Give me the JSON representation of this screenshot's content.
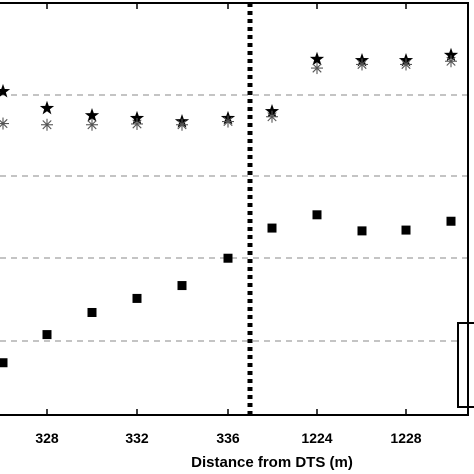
{
  "chart_data": {
    "type": "scatter",
    "xlabel": "Distance from DTS (m)",
    "x_tick_labels": [
      "328",
      "332",
      "336",
      "1224",
      "1228"
    ],
    "grid": "horizontal-dashed",
    "separator": "vertical dotted line between 336 and 1224",
    "legend": "box at bottom-right, contents cropped",
    "series": [
      {
        "marker": "star",
        "points": [
          {
            "x": 326,
            "rank": 0.805
          },
          {
            "x": 328,
            "rank": 0.763
          },
          {
            "x": 330,
            "rank": 0.745
          },
          {
            "x": 332,
            "rank": 0.738
          },
          {
            "x": 334,
            "rank": 0.73
          },
          {
            "x": 336,
            "rank": 0.738
          },
          {
            "x": 1222,
            "rank": 0.755
          },
          {
            "x": 1224,
            "rank": 0.885
          },
          {
            "x": 1226,
            "rank": 0.882
          },
          {
            "x": 1228,
            "rank": 0.882
          },
          {
            "x": 1230,
            "rank": 0.895
          }
        ]
      },
      {
        "marker": "asterisk",
        "points": [
          {
            "x": 326,
            "rank": 0.725
          },
          {
            "x": 328,
            "rank": 0.722
          },
          {
            "x": 330,
            "rank": 0.722
          },
          {
            "x": 332,
            "rank": 0.724
          },
          {
            "x": 334,
            "rank": 0.722
          },
          {
            "x": 336,
            "rank": 0.73
          },
          {
            "x": 1222,
            "rank": 0.742
          },
          {
            "x": 1224,
            "rank": 0.863
          },
          {
            "x": 1226,
            "rank": 0.872
          },
          {
            "x": 1228,
            "rank": 0.872
          },
          {
            "x": 1230,
            "rank": 0.88
          }
        ]
      },
      {
        "marker": "square",
        "points": [
          {
            "x": 326,
            "rank": 0.13
          },
          {
            "x": 328,
            "rank": 0.2
          },
          {
            "x": 330,
            "rank": 0.255
          },
          {
            "x": 332,
            "rank": 0.29
          },
          {
            "x": 334,
            "rank": 0.322
          },
          {
            "x": 336,
            "rank": 0.39
          },
          {
            "x": 1222,
            "rank": 0.465
          },
          {
            "x": 1224,
            "rank": 0.498
          },
          {
            "x": 1226,
            "rank": 0.458
          },
          {
            "x": 1228,
            "rank": 0.46
          },
          {
            "x": 1230,
            "rank": 0.482
          }
        ]
      }
    ]
  }
}
